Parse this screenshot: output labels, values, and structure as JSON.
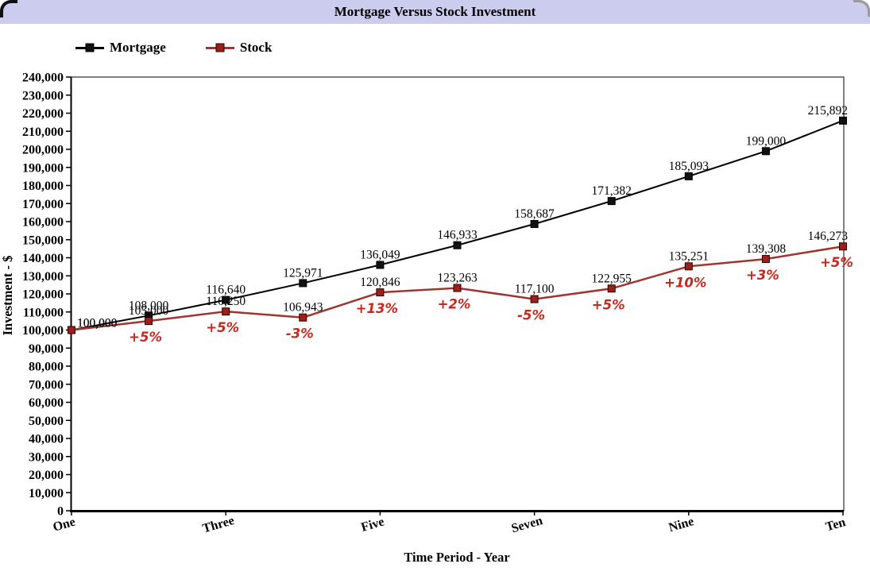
{
  "title_bar": {
    "title": "Mortgage Versus Stock Investment",
    "bg_color": "#ccccee"
  },
  "legend": {
    "items": [
      {
        "label": "Mortgage",
        "line_color": "#000000",
        "marker_color": "#111111",
        "marker_border": "#000000"
      },
      {
        "label": "Stock",
        "line_color": "#a03530",
        "marker_color": "#9c1f1a",
        "marker_border": "#2a0000"
      }
    ]
  },
  "chart_data": {
    "type": "line",
    "title": "Mortgage Versus Stock Investment",
    "xlabel": "Time Period - Year",
    "ylabel": "Investment - $",
    "ylim": [
      0,
      240000
    ],
    "ytick_step": 10000,
    "ytick_labels": [
      "0",
      "10,000",
      "20,000",
      "30,000",
      "40,000",
      "50,000",
      "60,000",
      "70,000",
      "80,000",
      "90,000",
      "100,000",
      "110,000",
      "120,000",
      "130,000",
      "140,000",
      "150,000",
      "160,000",
      "170,000",
      "180,000",
      "190,000",
      "200,000",
      "210,000",
      "220,000",
      "230,000",
      "240,000"
    ],
    "grid": false,
    "legend_position": "top-left",
    "x_point_count": 11,
    "x_categories_shown": [
      {
        "index": 0,
        "label": "One"
      },
      {
        "index": 2,
        "label": "Three"
      },
      {
        "index": 4,
        "label": "Five"
      },
      {
        "index": 6,
        "label": "Seven"
      },
      {
        "index": 8,
        "label": "Nine"
      },
      {
        "index": 10,
        "label": "Ten"
      }
    ],
    "series": [
      {
        "name": "Mortgage",
        "color": "#000000",
        "marker": "square",
        "marker_color": "#111111",
        "marker_border": "#000000",
        "values": [
          100000,
          108000,
          116640,
          125971,
          136049,
          146933,
          158687,
          171382,
          185093,
          199000,
          215892
        ],
        "labels": [
          "100,000",
          "108,000",
          "116,640",
          "125,971",
          "136,049",
          "146,933",
          "158,687",
          "171,382",
          "185,093",
          "199,000",
          "215,892"
        ]
      },
      {
        "name": "Stock",
        "color": "#a03530",
        "marker": "square",
        "marker_color": "#9c1f1a",
        "marker_border": "#2a0000",
        "values": [
          100000,
          105000,
          110250,
          106943,
          120846,
          123263,
          117100,
          122955,
          135251,
          139308,
          146273
        ],
        "labels": [
          "100,000",
          "105,000",
          "110,250",
          "106,943",
          "120,846",
          "123,263",
          "117,100",
          "122,955",
          "135,251",
          "139,308",
          "146,273"
        ],
        "pct_color": "#c5281c",
        "pct_change_labels": [
          null,
          "+5%",
          "+5%",
          "-3%",
          "+13%",
          "+2%",
          "-5%",
          "+5%",
          "+10%",
          "+3%",
          "+5%"
        ]
      }
    ]
  }
}
